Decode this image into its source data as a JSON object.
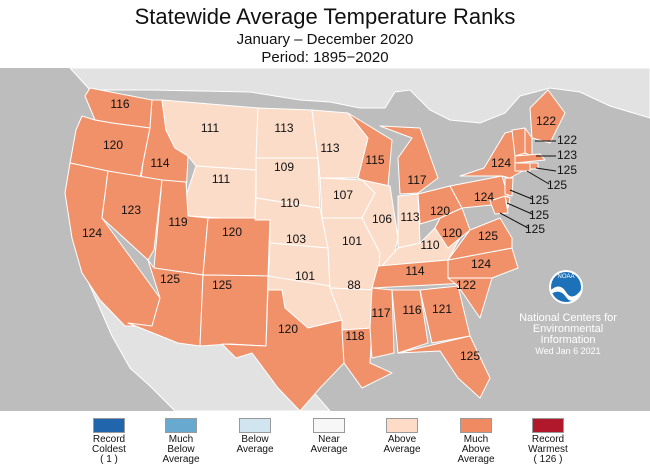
{
  "title": "Statewide Average Temperature Ranks",
  "subtitle": "January – December 2020",
  "period": "Period: 1895−2020",
  "colors": {
    "ocean": "#bdbdbd",
    "foreign_land": "#e2e2e2",
    "much_above": "#f0916a",
    "above": "#fbdcc8",
    "border": "#ffffff"
  },
  "states": [
    {
      "code": "WA",
      "rank": "116",
      "category": "much_above"
    },
    {
      "code": "OR",
      "rank": "120",
      "category": "much_above"
    },
    {
      "code": "CA",
      "rank": "124",
      "category": "much_above"
    },
    {
      "code": "ID",
      "rank": "114",
      "category": "much_above"
    },
    {
      "code": "NV",
      "rank": "123",
      "category": "much_above"
    },
    {
      "code": "MT",
      "rank": "111",
      "category": "above"
    },
    {
      "code": "WY",
      "rank": "111",
      "category": "above"
    },
    {
      "code": "UT",
      "rank": "119",
      "category": "much_above"
    },
    {
      "code": "CO",
      "rank": "120",
      "category": "much_above"
    },
    {
      "code": "AZ",
      "rank": "125",
      "category": "much_above"
    },
    {
      "code": "NM",
      "rank": "125",
      "category": "much_above"
    },
    {
      "code": "ND",
      "rank": "113",
      "category": "above"
    },
    {
      "code": "SD",
      "rank": "109",
      "category": "above"
    },
    {
      "code": "NE",
      "rank": "110",
      "category": "above"
    },
    {
      "code": "KS",
      "rank": "103",
      "category": "above"
    },
    {
      "code": "OK",
      "rank": "101",
      "category": "above"
    },
    {
      "code": "TX",
      "rank": "120",
      "category": "much_above"
    },
    {
      "code": "MN",
      "rank": "113",
      "category": "above"
    },
    {
      "code": "IA",
      "rank": "107",
      "category": "above"
    },
    {
      "code": "MO",
      "rank": "101",
      "category": "above"
    },
    {
      "code": "AR",
      "rank": "88",
      "category": "above"
    },
    {
      "code": "LA",
      "rank": "118",
      "category": "much_above"
    },
    {
      "code": "WI",
      "rank": "115",
      "category": "much_above"
    },
    {
      "code": "IL",
      "rank": "106",
      "category": "above"
    },
    {
      "code": "MI",
      "rank": "117",
      "category": "much_above"
    },
    {
      "code": "IN",
      "rank": "113",
      "category": "above"
    },
    {
      "code": "KY",
      "rank": "110",
      "category": "above"
    },
    {
      "code": "TN",
      "rank": "114",
      "category": "much_above"
    },
    {
      "code": "MS",
      "rank": "117",
      "category": "much_above"
    },
    {
      "code": "AL",
      "rank": "116",
      "category": "much_above"
    },
    {
      "code": "GA",
      "rank": "121",
      "category": "much_above"
    },
    {
      "code": "FL",
      "rank": "125",
      "category": "much_above"
    },
    {
      "code": "SC",
      "rank": "122",
      "category": "much_above"
    },
    {
      "code": "NC",
      "rank": "124",
      "category": "much_above"
    },
    {
      "code": "VA",
      "rank": "125",
      "category": "much_above"
    },
    {
      "code": "WV",
      "rank": "120",
      "category": "much_above"
    },
    {
      "code": "OH",
      "rank": "120",
      "category": "much_above"
    },
    {
      "code": "PA",
      "rank": "124",
      "category": "much_above"
    },
    {
      "code": "NY",
      "rank": "124",
      "category": "much_above"
    },
    {
      "code": "ME",
      "rank": "122",
      "category": "much_above"
    },
    {
      "code": "NH",
      "rank": "122",
      "category": "much_above"
    },
    {
      "code": "VT",
      "rank": "",
      "category": "much_above"
    },
    {
      "code": "MA",
      "rank": "123",
      "category": "much_above"
    },
    {
      "code": "RI",
      "rank": "125",
      "category": "much_above"
    },
    {
      "code": "CT",
      "rank": "125",
      "category": "much_above"
    },
    {
      "code": "NJ",
      "rank": "125",
      "category": "much_above"
    },
    {
      "code": "DE",
      "rank": "125",
      "category": "much_above"
    },
    {
      "code": "MD",
      "rank": "125",
      "category": "much_above"
    }
  ],
  "credit": {
    "logo_text": "NOAA",
    "line1": "National Centers for",
    "line2": "Environmental",
    "line3": "Information",
    "date": "Wed Jan  6 2021"
  },
  "legend": [
    {
      "label": "Record\nColdest\n( 1 )",
      "color": "#2166ac"
    },
    {
      "label": "Much\nBelow\nAverage",
      "color": "#67a9cf"
    },
    {
      "label": "Below\nAverage",
      "color": "#d1e5f0"
    },
    {
      "label": "Near\nAverage",
      "color": "#f7f7f7"
    },
    {
      "label": "Above\nAverage",
      "color": "#fddbc7"
    },
    {
      "label": "Much\nAbove\nAverage",
      "color": "#ef8a62"
    },
    {
      "label": "Record\nWarmest\n( 126 )",
      "color": "#b2182b"
    }
  ]
}
